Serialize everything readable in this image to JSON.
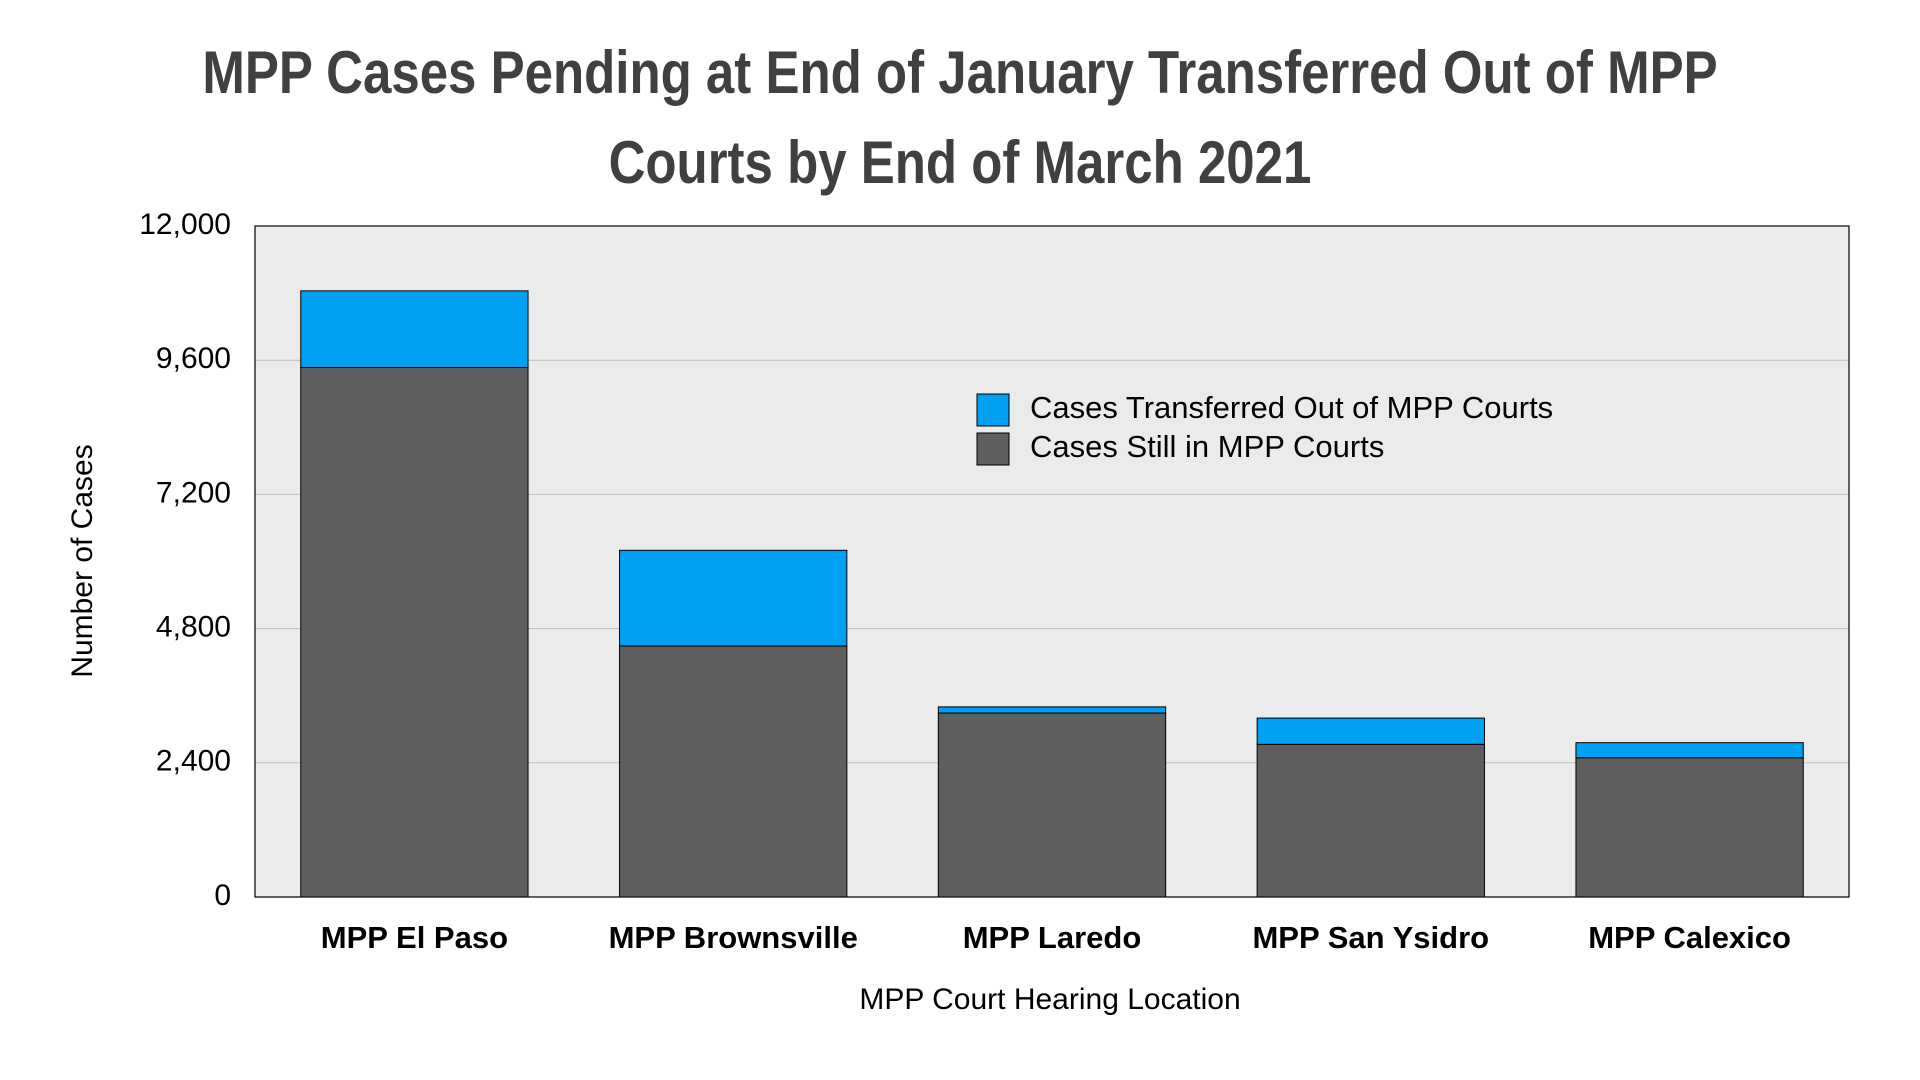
{
  "chart_data": {
    "type": "stacked_bar",
    "title": "MPP Cases Pending at End of January Transferred Out of MPP Courts by End of March 2021",
    "x_label": "MPP Court Hearing Location",
    "y_label": "Number of Cases",
    "categories": [
      "MPP El Paso",
      "MPP Brownsville",
      "MPP Laredo",
      "MPP San Ysidro",
      "MPP Calexico"
    ],
    "series": [
      {
        "name": "Cases Transferred Out of MPP Courts",
        "color": "#00a0f5",
        "values": [
          1370,
          1710,
          110,
          470,
          270
        ]
      },
      {
        "name": "Cases Still in MPP Courts",
        "color": "#5e5e5e",
        "values": [
          9470,
          4490,
          3290,
          2730,
          2490
        ]
      }
    ],
    "ylim": [
      0,
      12000
    ],
    "yticks": [
      0,
      {
        "value": 2400,
        "label": "2,400"
      },
      {
        "value": 4800,
        "label": "4,800"
      },
      {
        "value": 7200,
        "label": "7,200"
      },
      {
        "value": 9600,
        "label": "9,600"
      },
      {
        "value": 12000,
        "label": "12,000"
      }
    ],
    "grid": true,
    "plot_background": "#ebebeb"
  }
}
